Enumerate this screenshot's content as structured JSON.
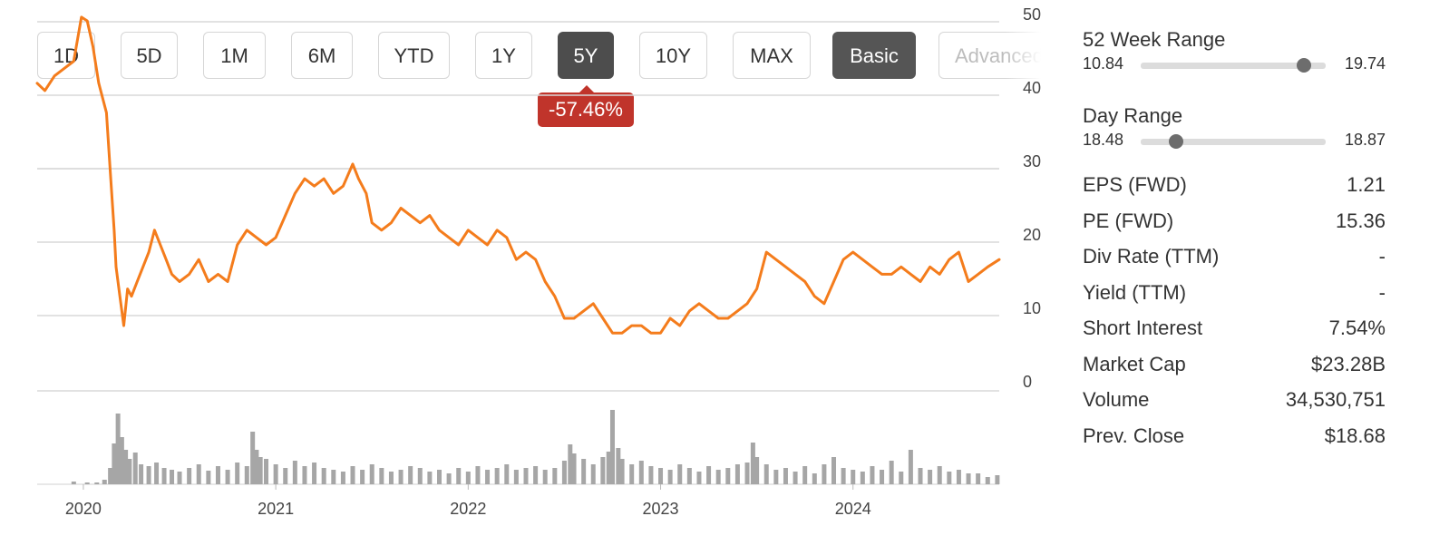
{
  "range_buttons": [
    {
      "label": "1D",
      "active": false
    },
    {
      "label": "5D",
      "active": false
    },
    {
      "label": "1M",
      "active": false
    },
    {
      "label": "6M",
      "active": false
    },
    {
      "label": "YTD",
      "active": false
    },
    {
      "label": "1Y",
      "active": false
    },
    {
      "label": "5Y",
      "active": true
    },
    {
      "label": "10Y",
      "active": false
    },
    {
      "label": "MAX",
      "active": false
    }
  ],
  "view_modes": {
    "basic": "Basic",
    "advanced": "Advanced"
  },
  "performance_badge": "-57.46%",
  "colors": {
    "price_line": "#f47c1c",
    "volume_bars": "#a6a6a6",
    "badge": "#c0342b",
    "active_button": "#4d4d4d"
  },
  "stats": {
    "week52": {
      "title": "52 Week Range",
      "low": "10.84",
      "high": "19.74",
      "position": 0.88
    },
    "day": {
      "title": "Day Range",
      "low": "18.48",
      "high": "18.87",
      "position": 0.19
    },
    "rows": [
      {
        "label": "EPS (FWD)",
        "value": "1.21"
      },
      {
        "label": "PE (FWD)",
        "value": "15.36"
      },
      {
        "label": "Div Rate (TTM)",
        "value": "-"
      },
      {
        "label": "Yield (TTM)",
        "value": "-"
      },
      {
        "label": "Short Interest",
        "value": "7.54%"
      },
      {
        "label": "Market Cap",
        "value": "$23.28B"
      },
      {
        "label": "Volume",
        "value": "34,530,751"
      },
      {
        "label": "Prev. Close",
        "value": "$18.68"
      }
    ]
  },
  "chart_data": {
    "type": "line",
    "y_ticks": [
      "50",
      "40",
      "30",
      "20",
      "10",
      "0"
    ],
    "x_ticks": [
      "2020",
      "2021",
      "2022",
      "2023",
      "2024"
    ],
    "ylim": [
      0,
      56
    ],
    "xlim": [
      2019.76,
      2024.76
    ],
    "grid": true,
    "series": [
      {
        "x": [
          2019.76,
          2019.8,
          2019.85,
          2019.9,
          2019.95,
          2019.99,
          2020.02,
          2020.05,
          2020.08,
          2020.12,
          2020.14,
          2020.16,
          2020.17,
          2020.19,
          2020.21,
          2020.23,
          2020.25,
          2020.28,
          2020.31,
          2020.34,
          2020.37,
          2020.4,
          2020.43,
          2020.46,
          2020.5,
          2020.55,
          2020.6,
          2020.65,
          2020.7,
          2020.75,
          2020.8,
          2020.85,
          2020.9,
          2020.95,
          2021.0,
          2021.05,
          2021.1,
          2021.15,
          2021.2,
          2021.25,
          2021.3,
          2021.35,
          2021.4,
          2021.43,
          2021.47,
          2021.5,
          2021.55,
          2021.6,
          2021.65,
          2021.7,
          2021.75,
          2021.8,
          2021.85,
          2021.9,
          2021.95,
          2022.0,
          2022.05,
          2022.1,
          2022.15,
          2022.2,
          2022.25,
          2022.3,
          2022.35,
          2022.4,
          2022.45,
          2022.5,
          2022.55,
          2022.6,
          2022.65,
          2022.7,
          2022.75,
          2022.8,
          2022.85,
          2022.9,
          2022.95,
          2023.0,
          2023.05,
          2023.1,
          2023.15,
          2023.2,
          2023.25,
          2023.3,
          2023.35,
          2023.4,
          2023.45,
          2023.5,
          2023.55,
          2023.6,
          2023.65,
          2023.7,
          2023.75,
          2023.8,
          2023.85,
          2023.9,
          2023.95,
          2024.0,
          2024.05,
          2024.1,
          2024.15,
          2024.2,
          2024.25,
          2024.3,
          2024.35,
          2024.4,
          2024.45,
          2024.5,
          2024.55,
          2024.6,
          2024.65,
          2024.7,
          2024.76
        ],
        "y": [
          42.0,
          41.0,
          43.0,
          44.0,
          45.0,
          51.0,
          50.5,
          47.0,
          42.0,
          38.0,
          30.0,
          22.0,
          17.0,
          13.0,
          9.0,
          14.0,
          13.0,
          15.0,
          17.0,
          19.0,
          22.0,
          20.0,
          18.0,
          16.0,
          15.0,
          16.0,
          18.0,
          15.0,
          16.0,
          15.0,
          20.0,
          22.0,
          21.0,
          20.0,
          21.0,
          24.0,
          27.0,
          29.0,
          28.0,
          29.0,
          27.0,
          28.0,
          31.0,
          29.0,
          27.0,
          23.0,
          22.0,
          23.0,
          25.0,
          24.0,
          23.0,
          24.0,
          22.0,
          21.0,
          20.0,
          22.0,
          21.0,
          20.0,
          22.0,
          21.0,
          18.0,
          19.0,
          18.0,
          15.0,
          13.0,
          10.0,
          10.0,
          11.0,
          12.0,
          10.0,
          8.0,
          8.0,
          9.0,
          9.0,
          8.0,
          8.0,
          10.0,
          9.0,
          11.0,
          12.0,
          11.0,
          10.0,
          10.0,
          11.0,
          12.0,
          14.0,
          19.0,
          18.0,
          17.0,
          16.0,
          15.0,
          13.0,
          12.0,
          15.0,
          18.0,
          19.0,
          18.0,
          17.0,
          16.0,
          16.0,
          17.0,
          16.0,
          15.0,
          17.0,
          16.0,
          18.0,
          19.0,
          15.0,
          16.0,
          17.0,
          18.0
        ]
      }
    ],
    "volume": {
      "x": [
        2019.95,
        2020.02,
        2020.07,
        2020.11,
        2020.14,
        2020.16,
        2020.18,
        2020.2,
        2020.22,
        2020.24,
        2020.27,
        2020.3,
        2020.34,
        2020.38,
        2020.42,
        2020.46,
        2020.5,
        2020.55,
        2020.6,
        2020.65,
        2020.7,
        2020.75,
        2020.8,
        2020.85,
        2020.88,
        2020.9,
        2020.92,
        2020.95,
        2021.0,
        2021.05,
        2021.1,
        2021.15,
        2021.2,
        2021.25,
        2021.3,
        2021.35,
        2021.4,
        2021.45,
        2021.5,
        2021.55,
        2021.6,
        2021.65,
        2021.7,
        2021.75,
        2021.8,
        2021.85,
        2021.9,
        2021.95,
        2022.0,
        2022.05,
        2022.1,
        2022.15,
        2022.2,
        2022.25,
        2022.3,
        2022.35,
        2022.4,
        2022.45,
        2022.5,
        2022.53,
        2022.55,
        2022.6,
        2022.65,
        2022.7,
        2022.73,
        2022.75,
        2022.78,
        2022.8,
        2022.85,
        2022.9,
        2022.95,
        2023.0,
        2023.05,
        2023.1,
        2023.15,
        2023.2,
        2023.25,
        2023.3,
        2023.35,
        2023.4,
        2023.45,
        2023.48,
        2023.5,
        2023.55,
        2023.6,
        2023.65,
        2023.7,
        2023.75,
        2023.8,
        2023.85,
        2023.9,
        2023.95,
        2024.0,
        2024.05,
        2024.1,
        2024.15,
        2024.2,
        2024.25,
        2024.3,
        2024.35,
        2024.4,
        2024.45,
        2024.5,
        2024.55,
        2024.6,
        2024.65,
        2024.7,
        2024.75
      ],
      "v": [
        3,
        2,
        2,
        5,
        18,
        45,
        78,
        52,
        38,
        28,
        35,
        22,
        20,
        24,
        18,
        16,
        14,
        18,
        22,
        15,
        20,
        16,
        24,
        20,
        58,
        38,
        30,
        28,
        22,
        18,
        26,
        20,
        24,
        18,
        16,
        14,
        20,
        16,
        22,
        18,
        14,
        16,
        20,
        18,
        14,
        16,
        12,
        18,
        14,
        20,
        16,
        18,
        22,
        16,
        18,
        20,
        16,
        18,
        26,
        44,
        34,
        28,
        22,
        30,
        36,
        82,
        40,
        28,
        22,
        26,
        20,
        18,
        16,
        22,
        18,
        14,
        20,
        16,
        18,
        22,
        24,
        46,
        30,
        22,
        16,
        18,
        14,
        20,
        12,
        22,
        30,
        18,
        16,
        14,
        20,
        16,
        26,
        14,
        38,
        18,
        16,
        20,
        14,
        16,
        12,
        12,
        8,
        10
      ]
    }
  }
}
